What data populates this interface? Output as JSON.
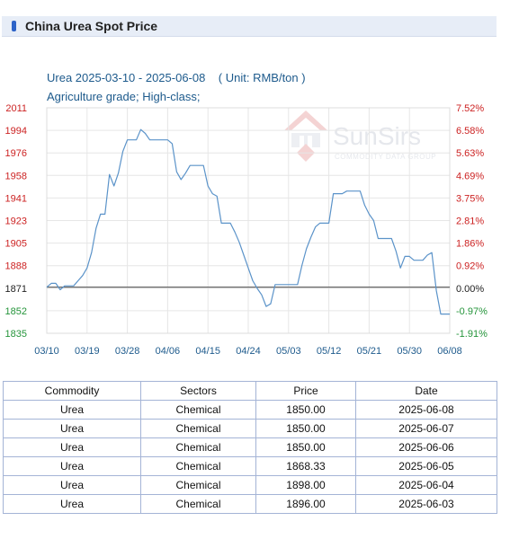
{
  "page": {
    "title": "China Urea Spot Price"
  },
  "chart_data": {
    "type": "line",
    "title_line1": "Urea 2025-03-10 - 2025-06-08    ( Unit: RMB/ton )",
    "title_line2": "Agriculture grade; High-class;",
    "watermark": {
      "brand": "SunSirs",
      "tagline": "COMMODITY DATA GROUP"
    },
    "baseline": 1871,
    "ylim": [
      1835,
      2011
    ],
    "y_ticks_left": [
      "2011",
      "1994",
      "1976",
      "1958",
      "1941",
      "1923",
      "1905",
      "1888",
      "1871",
      "1852",
      "1835"
    ],
    "y_ticks_right": [
      "7.52%",
      "6.58%",
      "5.63%",
      "4.69%",
      "3.75%",
      "2.81%",
      "1.86%",
      "0.92%",
      "0.00%",
      "-0.97%",
      "-1.91%"
    ],
    "x_start": "03/10",
    "x_end": "06/08",
    "x_ticks": [
      "03/10",
      "03/19",
      "03/28",
      "04/06",
      "04/15",
      "04/24",
      "05/03",
      "05/12",
      "05/21",
      "05/30",
      "06/08"
    ],
    "series": [
      {
        "points": [
          [
            "03/10",
            1871
          ],
          [
            "03/11",
            1874
          ],
          [
            "03/12",
            1874
          ],
          [
            "03/13",
            1869
          ],
          [
            "03/14",
            1872
          ],
          [
            "03/15",
            1872
          ],
          [
            "03/16",
            1872
          ],
          [
            "03/17",
            1876
          ],
          [
            "03/18",
            1880
          ],
          [
            "03/19",
            1886
          ],
          [
            "03/20",
            1898
          ],
          [
            "03/21",
            1917
          ],
          [
            "03/22",
            1928
          ],
          [
            "03/23",
            1928
          ],
          [
            "03/24",
            1959
          ],
          [
            "03/25",
            1950
          ],
          [
            "03/26",
            1960
          ],
          [
            "03/27",
            1977
          ],
          [
            "03/28",
            1986
          ],
          [
            "03/29",
            1986
          ],
          [
            "03/30",
            1986
          ],
          [
            "03/31",
            1994
          ],
          [
            "04/01",
            1991
          ],
          [
            "04/02",
            1986
          ],
          [
            "04/03",
            1986
          ],
          [
            "04/04",
            1986
          ],
          [
            "04/05",
            1986
          ],
          [
            "04/06",
            1986
          ],
          [
            "04/07",
            1983
          ],
          [
            "04/08",
            1961
          ],
          [
            "04/09",
            1955
          ],
          [
            "04/10",
            1960
          ],
          [
            "04/11",
            1966
          ],
          [
            "04/12",
            1966
          ],
          [
            "04/13",
            1966
          ],
          [
            "04/14",
            1966
          ],
          [
            "04/15",
            1950
          ],
          [
            "04/16",
            1944
          ],
          [
            "04/17",
            1942
          ],
          [
            "04/18",
            1921
          ],
          [
            "04/19",
            1921
          ],
          [
            "04/20",
            1921
          ],
          [
            "04/21",
            1914
          ],
          [
            "04/22",
            1906
          ],
          [
            "04/23",
            1896
          ],
          [
            "04/24",
            1886
          ],
          [
            "04/25",
            1876
          ],
          [
            "04/26",
            1870
          ],
          [
            "04/27",
            1865
          ],
          [
            "04/28",
            1856
          ],
          [
            "04/29",
            1858
          ],
          [
            "04/30",
            1873
          ],
          [
            "05/01",
            1873
          ],
          [
            "05/02",
            1873
          ],
          [
            "05/03",
            1873
          ],
          [
            "05/04",
            1873
          ],
          [
            "05/05",
            1873
          ],
          [
            "05/06",
            1888
          ],
          [
            "05/07",
            1901
          ],
          [
            "05/08",
            1910
          ],
          [
            "05/09",
            1918
          ],
          [
            "05/10",
            1921
          ],
          [
            "05/11",
            1921
          ],
          [
            "05/12",
            1921
          ],
          [
            "05/13",
            1944
          ],
          [
            "05/14",
            1944
          ],
          [
            "05/15",
            1944
          ],
          [
            "05/16",
            1946
          ],
          [
            "05/17",
            1946
          ],
          [
            "05/18",
            1946
          ],
          [
            "05/19",
            1946
          ],
          [
            "05/20",
            1935
          ],
          [
            "05/21",
            1928
          ],
          [
            "05/22",
            1923
          ],
          [
            "05/23",
            1909
          ],
          [
            "05/24",
            1909
          ],
          [
            "05/25",
            1909
          ],
          [
            "05/26",
            1909
          ],
          [
            "05/27",
            1899
          ],
          [
            "05/28",
            1886
          ],
          [
            "05/29",
            1895
          ],
          [
            "05/30",
            1895
          ],
          [
            "05/31",
            1892
          ],
          [
            "06/01",
            1892
          ],
          [
            "06/02",
            1892
          ],
          [
            "06/03",
            1896
          ],
          [
            "06/04",
            1898
          ],
          [
            "06/05",
            1868.33
          ],
          [
            "06/06",
            1850
          ],
          [
            "06/07",
            1850
          ],
          [
            "06/08",
            1850
          ]
        ]
      }
    ],
    "colors": {
      "line": "#5b93c9",
      "baseline": "#666666",
      "grid": "#e6e6e6",
      "left_axis": "#cc2222",
      "right_axis": "#cc2222",
      "below_baseline": "#24943a",
      "title": "#1d5a8c",
      "x_tick": "#1d5a8c"
    }
  },
  "table": {
    "columns": [
      "Commodity",
      "Sectors",
      "Price",
      "Date"
    ],
    "rows": [
      [
        "Urea",
        "Chemical",
        "1850.00",
        "2025-06-08"
      ],
      [
        "Urea",
        "Chemical",
        "1850.00",
        "2025-06-07"
      ],
      [
        "Urea",
        "Chemical",
        "1850.00",
        "2025-06-06"
      ],
      [
        "Urea",
        "Chemical",
        "1868.33",
        "2025-06-05"
      ],
      [
        "Urea",
        "Chemical",
        "1898.00",
        "2025-06-04"
      ],
      [
        "Urea",
        "Chemical",
        "1896.00",
        "2025-06-03"
      ]
    ]
  }
}
